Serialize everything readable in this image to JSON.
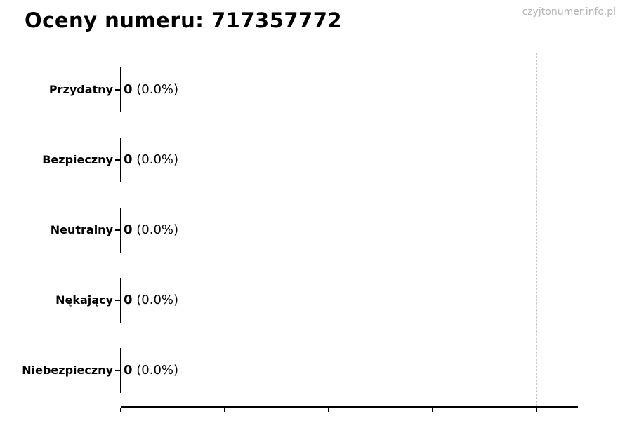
{
  "page": {
    "title": "Oceny numeru: 717357772",
    "watermark": "czyjtonumer.info.pl"
  },
  "chart_data": {
    "type": "bar",
    "orientation": "horizontal",
    "title": "Oceny numeru: 717357772",
    "categories": [
      "Przydatny",
      "Bezpieczny",
      "Neutralny",
      "Nękający",
      "Niebezpieczny"
    ],
    "values": [
      0,
      0,
      0,
      0,
      0
    ],
    "value_labels": [
      {
        "count": "0",
        "percent": "(0.0%)"
      },
      {
        "count": "0",
        "percent": "(0.0%)"
      },
      {
        "count": "0",
        "percent": "(0.0%)"
      },
      {
        "count": "0",
        "percent": "(0.0%)"
      },
      {
        "count": "0",
        "percent": "(0.0%)"
      }
    ],
    "xlabel": "",
    "ylabel": "",
    "x_tick_labels_visible": false,
    "grid": {
      "vertical_dashed": true,
      "num_gridlines": 5,
      "color": "#c9c9c9"
    },
    "colors": {
      "bar_edge": "#000000",
      "axis": "#000000",
      "text": "#000000",
      "watermark": "#b3b3b3",
      "background": "#ffffff"
    }
  }
}
